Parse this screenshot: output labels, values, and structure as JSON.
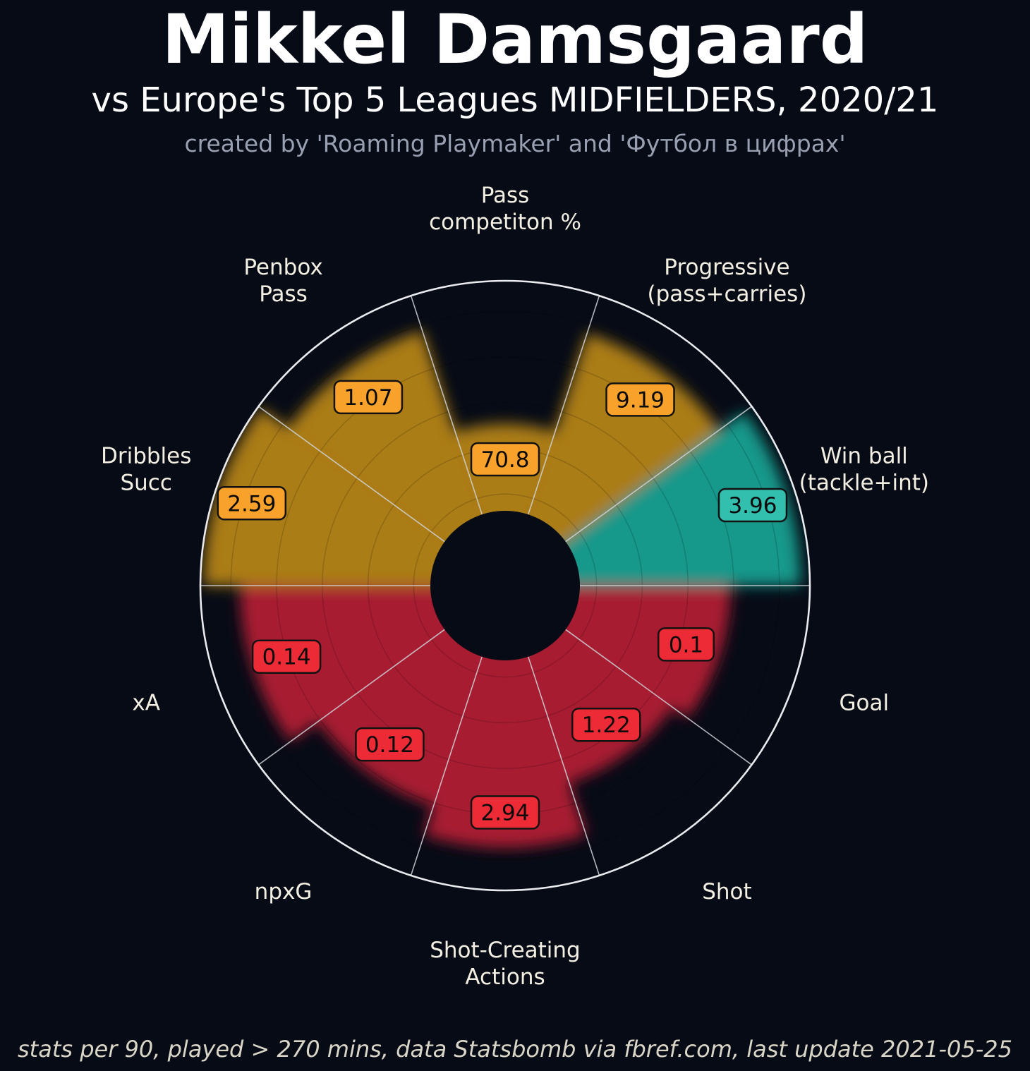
{
  "header": {
    "title": "Mikkel Damsgaard",
    "subtitle": "vs Europe's Top 5 Leagues MIDFIELDERS, 2020/21",
    "credit": "created by 'Roaming Playmaker' and 'Футбол в цифрах'"
  },
  "footer": {
    "note": "stats per 90, played > 270 mins, data Statsbomb via fbref.com, last update 2021-05-25"
  },
  "chart_data": {
    "type": "pie",
    "subtype": "pizza-percentile-polar-bar",
    "title": "Mikkel Damsgaard vs Europe's Top 5 Leagues MIDFIELDERS, 2020/21",
    "direction": "clockwise",
    "start_angle_deg": 0,
    "slice_span_deg": 36,
    "background": "#070b16",
    "ring_color": "#e9ebee",
    "spoke_color": "#cfd3d8",
    "label_color": "#f3efe2",
    "params": [
      {
        "label": "Pass\ncompetiton %",
        "value": "70.8",
        "percentile": 53,
        "group": "possession"
      },
      {
        "label": "Progressive\n(pass+carries)",
        "value": "9.19",
        "percentile": 87,
        "group": "possession"
      },
      {
        "label": "Win ball\n(tackle+int)",
        "value": "3.96",
        "percentile": 97,
        "group": "defending"
      },
      {
        "label": "Goal",
        "value": "0.1",
        "percentile": 74,
        "group": "attacking"
      },
      {
        "label": "Shot",
        "value": "1.22",
        "percentile": 68,
        "group": "attacking"
      },
      {
        "label": "Shot-Creating\nActions",
        "value": "2.94",
        "percentile": 86,
        "group": "attacking"
      },
      {
        "label": "npxG",
        "value": "0.12",
        "percentile": 76,
        "group": "attacking"
      },
      {
        "label": "xA",
        "value": "0.14",
        "percentile": 87,
        "group": "attacking"
      },
      {
        "label": "Dribbles\nSucc",
        "value": "2.59",
        "percentile": 99,
        "group": "possession"
      },
      {
        "label": "Penbox\nPass",
        "value": "1.07",
        "percentile": 88,
        "group": "possession"
      }
    ],
    "colors": {
      "possession": {
        "slice": "#ab7d18",
        "box": "#f9a22b"
      },
      "defending": {
        "slice": "#17988a",
        "box": "#32bfae"
      },
      "attacking": {
        "slice": "#a81c33",
        "box": "#ec2b36"
      }
    }
  }
}
